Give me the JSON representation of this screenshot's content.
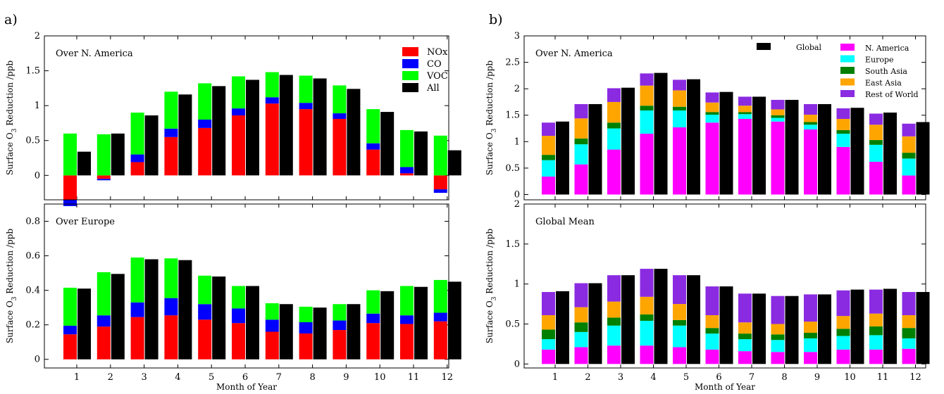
{
  "panel_labels": [
    "a)",
    "b)"
  ],
  "colors": {
    "NOx": "#ff0000",
    "CO": "#0000ff",
    "VOC": "#00ff00",
    "All": "#000000",
    "Global": "#000000",
    "N. America": "#ff00ff",
    "Europe": "#00ffff",
    "South Asia": "#008000",
    "East Asia": "#ffa500",
    "Rest of World": "#8a2be2"
  },
  "chart_data": [
    {
      "type": "bar",
      "id": "a-top",
      "panel": "a)",
      "annotation": "Over N. America",
      "ylabel": "Surface O3 Reduction /ppb",
      "xlabel": "",
      "ylim": [
        -0.35,
        2.0
      ],
      "yticks": [
        0,
        0.5,
        1,
        1.5,
        2
      ],
      "categories": [
        "1",
        "2",
        "3",
        "4",
        "5",
        "6",
        "7",
        "8",
        "9",
        "10",
        "11",
        "12"
      ],
      "legend_position": "top-right",
      "legend": [
        "NOx",
        "CO",
        "VOC",
        "All"
      ],
      "series": [
        {
          "name": "NOx",
          "values": [
            -0.35,
            -0.05,
            0.19,
            0.55,
            0.68,
            0.86,
            1.03,
            0.95,
            0.81,
            0.37,
            0.03,
            -0.2
          ]
        },
        {
          "name": "CO",
          "values": [
            -0.09,
            -0.02,
            0.11,
            0.12,
            0.12,
            0.1,
            0.09,
            0.09,
            0.08,
            0.09,
            0.09,
            -0.05
          ]
        },
        {
          "name": "VOC",
          "values": [
            0.6,
            0.59,
            0.6,
            0.53,
            0.52,
            0.46,
            0.36,
            0.39,
            0.4,
            0.49,
            0.53,
            0.57
          ]
        },
        {
          "name": "All",
          "values": [
            0.34,
            0.6,
            0.86,
            1.16,
            1.28,
            1.37,
            1.44,
            1.39,
            1.24,
            0.91,
            0.63,
            0.36
          ]
        }
      ]
    },
    {
      "type": "bar",
      "id": "a-bottom",
      "panel": "a)",
      "annotation": "Over Europe",
      "ylabel": "Surface O3 Reduction /ppb",
      "xlabel": "Month of Year",
      "ylim": [
        -0.05,
        0.9
      ],
      "yticks": [
        0,
        0.2,
        0.4,
        0.6,
        0.8
      ],
      "categories": [
        "1",
        "2",
        "3",
        "4",
        "5",
        "6",
        "7",
        "8",
        "9",
        "10",
        "11",
        "12"
      ],
      "series": [
        {
          "name": "NOx",
          "values": [
            0.145,
            0.19,
            0.245,
            0.255,
            0.23,
            0.21,
            0.16,
            0.15,
            0.17,
            0.21,
            0.205,
            0.22
          ]
        },
        {
          "name": "CO",
          "values": [
            0.05,
            0.065,
            0.085,
            0.1,
            0.09,
            0.085,
            0.07,
            0.065,
            0.055,
            0.055,
            0.05,
            0.05
          ]
        },
        {
          "name": "VOC",
          "values": [
            0.22,
            0.25,
            0.26,
            0.23,
            0.165,
            0.13,
            0.095,
            0.09,
            0.095,
            0.135,
            0.17,
            0.19
          ]
        },
        {
          "name": "All",
          "values": [
            0.41,
            0.495,
            0.58,
            0.575,
            0.48,
            0.425,
            0.32,
            0.3,
            0.32,
            0.395,
            0.42,
            0.45
          ]
        }
      ]
    },
    {
      "type": "bar",
      "id": "b-top",
      "panel": "b)",
      "annotation": "Over N. America",
      "ylabel": "Surface O3 Reduction /ppb",
      "xlabel": "",
      "ylim": [
        -0.1,
        3.0
      ],
      "yticks": [
        0,
        0.5,
        1,
        1.5,
        2,
        2.5,
        3
      ],
      "categories": [
        "1",
        "2",
        "3",
        "4",
        "5",
        "6",
        "7",
        "8",
        "9",
        "10",
        "11",
        "12"
      ],
      "legend_position": "top-right",
      "legend": [
        "Global",
        "N. America",
        "Europe",
        "South Asia",
        "East Asia",
        "Rest of World"
      ],
      "series": [
        {
          "name": "N. America",
          "values": [
            0.34,
            0.57,
            0.85,
            1.15,
            1.27,
            1.36,
            1.43,
            1.38,
            1.23,
            0.9,
            0.62,
            0.36
          ]
        },
        {
          "name": "Europe",
          "values": [
            0.31,
            0.38,
            0.4,
            0.44,
            0.32,
            0.15,
            0.09,
            0.07,
            0.09,
            0.25,
            0.32,
            0.32
          ]
        },
        {
          "name": "South Asia",
          "values": [
            0.1,
            0.11,
            0.11,
            0.09,
            0.07,
            0.05,
            0.04,
            0.05,
            0.05,
            0.07,
            0.09,
            0.11
          ]
        },
        {
          "name": "East Asia",
          "values": [
            0.36,
            0.38,
            0.39,
            0.38,
            0.31,
            0.18,
            0.12,
            0.11,
            0.14,
            0.21,
            0.29,
            0.31
          ]
        },
        {
          "name": "Rest of World",
          "values": [
            0.25,
            0.27,
            0.26,
            0.23,
            0.2,
            0.19,
            0.17,
            0.18,
            0.2,
            0.2,
            0.21,
            0.24
          ]
        },
        {
          "name": "Global",
          "values": [
            1.38,
            1.71,
            2.02,
            2.3,
            2.18,
            1.94,
            1.85,
            1.79,
            1.71,
            1.64,
            1.55,
            1.37
          ]
        }
      ]
    },
    {
      "type": "bar",
      "id": "b-bottom",
      "panel": "b)",
      "annotation": "Global Mean",
      "ylabel": "Surface O3 Reduction /ppb",
      "xlabel": "Month of Year",
      "ylim": [
        -0.05,
        2.0
      ],
      "yticks": [
        0,
        0.5,
        1,
        1.5,
        2
      ],
      "categories": [
        "1",
        "2",
        "3",
        "4",
        "5",
        "6",
        "7",
        "8",
        "9",
        "10",
        "11",
        "12"
      ],
      "series": [
        {
          "name": "N. America",
          "values": [
            0.18,
            0.21,
            0.23,
            0.23,
            0.21,
            0.18,
            0.16,
            0.15,
            0.15,
            0.18,
            0.18,
            0.19
          ]
        },
        {
          "name": "Europe",
          "values": [
            0.13,
            0.19,
            0.25,
            0.31,
            0.27,
            0.2,
            0.15,
            0.15,
            0.17,
            0.17,
            0.18,
            0.13
          ]
        },
        {
          "name": "South Asia",
          "values": [
            0.12,
            0.12,
            0.1,
            0.08,
            0.07,
            0.07,
            0.07,
            0.07,
            0.07,
            0.09,
            0.11,
            0.13
          ]
        },
        {
          "name": "East Asia",
          "values": [
            0.18,
            0.19,
            0.2,
            0.22,
            0.2,
            0.16,
            0.14,
            0.13,
            0.14,
            0.16,
            0.16,
            0.16
          ]
        },
        {
          "name": "Rest of World",
          "values": [
            0.29,
            0.3,
            0.33,
            0.35,
            0.36,
            0.36,
            0.36,
            0.35,
            0.34,
            0.32,
            0.3,
            0.29
          ]
        },
        {
          "name": "Global",
          "values": [
            0.91,
            1.01,
            1.11,
            1.19,
            1.11,
            0.97,
            0.88,
            0.85,
            0.87,
            0.93,
            0.94,
            0.9
          ]
        }
      ]
    }
  ]
}
